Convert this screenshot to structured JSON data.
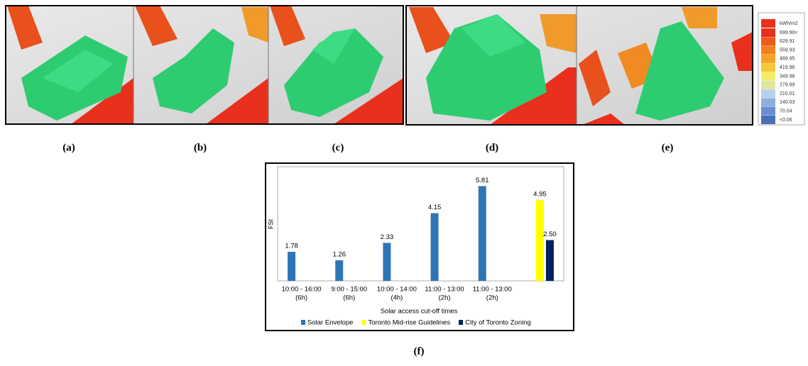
{
  "panels": [
    {
      "label": "(a)"
    },
    {
      "label": "(b)"
    },
    {
      "label": "(c)"
    },
    {
      "label": "(d)"
    },
    {
      "label": "(e)"
    },
    {
      "label": "(f)"
    }
  ],
  "scale": {
    "unit": "kWh/m2",
    "labels": [
      "699.90<",
      "629.91",
      "559.93",
      "489.95",
      "419.96",
      "349.98",
      "279.99",
      "210.01",
      "140.03",
      "70.04",
      "<0.06"
    ],
    "colors": [
      "#e8301c",
      "#ee5a1c",
      "#f2801f",
      "#f5a326",
      "#f7c83a",
      "#f2ec6a",
      "#dfe6a0",
      "#b8cfee",
      "#8faee0",
      "#6a8fd0",
      "#4a6fb8"
    ]
  },
  "chart_data": {
    "type": "bar",
    "categories": [
      [
        "10:00 - 16:00",
        "(6h)"
      ],
      [
        "9:00 - 15:00",
        "(6h)"
      ],
      [
        "10:00 - 14:00",
        "(4h)"
      ],
      [
        "11:00 - 13:00",
        "(2h)"
      ],
      [
        "11:00 - 13:00",
        "(2h)"
      ],
      null
    ],
    "y_label": "FSI",
    "x_label": "Solar access cut-off times",
    "ylim": [
      0,
      7
    ],
    "series": [
      {
        "name": "Solar Envelope",
        "color": "#2e75b6",
        "values": [
          1.78,
          1.26,
          2.33,
          4.15,
          5.81,
          null
        ]
      },
      {
        "name": "Toronto Mid-rise Guidelines",
        "color": "#ffff00",
        "values": [
          null,
          null,
          null,
          null,
          null,
          4.95
        ]
      },
      {
        "name": "City of Toronto Zoning",
        "color": "#002060",
        "values": [
          null,
          null,
          null,
          null,
          null,
          2.5
        ],
        "value_labels": [
          null,
          null,
          null,
          null,
          null,
          "2.50"
        ]
      }
    ]
  }
}
